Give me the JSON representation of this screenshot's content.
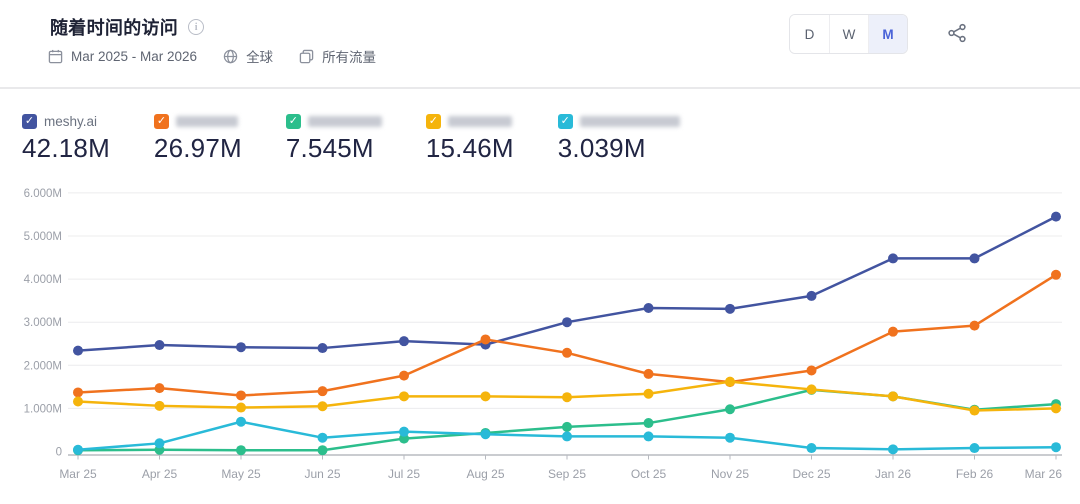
{
  "header": {
    "title": "随着时间的访问",
    "date_range": "Mar 2025 - Mar 2026",
    "region": "全球",
    "traffic_type": "所有流量"
  },
  "granularity": {
    "options": [
      "D",
      "W",
      "M"
    ],
    "selected": "M"
  },
  "chart_data": {
    "type": "line",
    "title": "随着时间的访问",
    "categories": [
      "Mar 25",
      "Apr 25",
      "May 25",
      "Jun 25",
      "Jul 25",
      "Aug 25",
      "Sep 25",
      "Oct 25",
      "Nov 25",
      "Dec 25",
      "Jan 26",
      "Feb 26",
      "Mar 26"
    ],
    "series": [
      {
        "name": "meshy.ai",
        "blurred": false,
        "blur_width": 0,
        "total": "42.18M",
        "color": "#4254A0",
        "values": [
          2.34,
          2.47,
          2.42,
          2.4,
          2.56,
          2.48,
          3.0,
          3.33,
          3.31,
          3.61,
          4.48,
          4.48,
          5.45
        ]
      },
      {
        "name": "",
        "blurred": true,
        "blur_width": 62,
        "total": "26.97M",
        "color": "#F0721E",
        "values": [
          1.37,
          1.47,
          1.3,
          1.4,
          1.76,
          2.6,
          2.29,
          1.8,
          1.61,
          1.88,
          2.78,
          2.92,
          4.1
        ]
      },
      {
        "name": "",
        "blurred": true,
        "blur_width": 74,
        "total": "7.545M",
        "color": "#2CBE8C",
        "values": [
          0.03,
          0.04,
          0.03,
          0.03,
          0.3,
          0.43,
          0.57,
          0.66,
          0.98,
          1.43,
          1.28,
          0.97,
          1.1
        ]
      },
      {
        "name": "",
        "blurred": true,
        "blur_width": 64,
        "total": "15.46M",
        "color": "#F5B40C",
        "values": [
          1.16,
          1.06,
          1.02,
          1.05,
          1.28,
          1.28,
          1.26,
          1.34,
          1.62,
          1.44,
          1.28,
          0.95,
          1.0
        ]
      },
      {
        "name": "",
        "blurred": true,
        "blur_width": 100,
        "total": "3.039M",
        "color": "#29BAD8",
        "values": [
          0.04,
          0.19,
          0.69,
          0.32,
          0.46,
          0.4,
          0.35,
          0.35,
          0.32,
          0.08,
          0.05,
          0.08,
          0.1
        ]
      }
    ],
    "ylim": [
      0,
      6
    ],
    "ytick_labels": [
      "0",
      "1.000M",
      "2.000M",
      "3.000M",
      "4.000M",
      "5.000M",
      "6.000M"
    ],
    "unit": "M",
    "grid": true,
    "legend_position": "top"
  }
}
